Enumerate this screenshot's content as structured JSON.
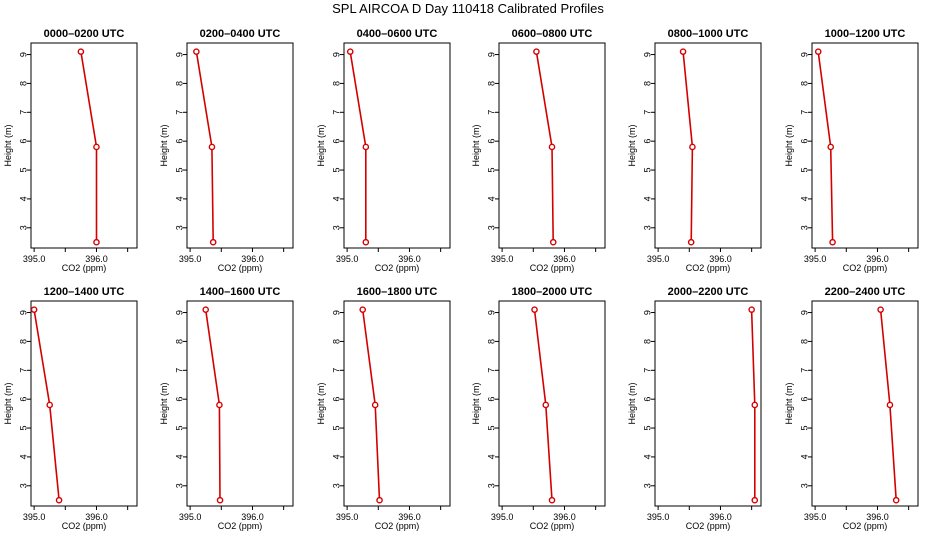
{
  "figure_title": "SPL AIRCOA D  Day 110418  Calibrated Profiles",
  "series_color": "#d40000",
  "chart_data": [
    {
      "type": "line",
      "title": "0000–0200 UTC",
      "xlabel": "CO2 (ppm)",
      "ylabel": "Height (m)",
      "xlim": [
        394.95,
        396.65
      ],
      "ylim": [
        2.3,
        9.4
      ],
      "xticks": [
        395.0,
        396.0
      ],
      "xtick_labels": [
        "395.0",
        "396.0"
      ],
      "yticks": [
        3,
        4,
        5,
        6,
        7,
        8,
        9
      ],
      "x": [
        395.75,
        396.0,
        396.0
      ],
      "y": [
        9.1,
        5.8,
        2.5
      ]
    },
    {
      "type": "line",
      "title": "0200–0400 UTC",
      "xlabel": "CO2 (ppm)",
      "ylabel": "Height (m)",
      "xlim": [
        394.95,
        396.65
      ],
      "ylim": [
        2.3,
        9.4
      ],
      "xticks": [
        395.0,
        396.0
      ],
      "xtick_labels": [
        "395.0",
        "396.0"
      ],
      "yticks": [
        3,
        4,
        5,
        6,
        7,
        8,
        9
      ],
      "x": [
        395.1,
        395.35,
        395.37
      ],
      "y": [
        9.1,
        5.8,
        2.5
      ]
    },
    {
      "type": "line",
      "title": "0400–0600 UTC",
      "xlabel": "CO2 (ppm)",
      "ylabel": "Height (m)",
      "xlim": [
        394.95,
        396.65
      ],
      "ylim": [
        2.3,
        9.4
      ],
      "xticks": [
        395.0,
        396.0
      ],
      "xtick_labels": [
        "395.0",
        "396.0"
      ],
      "yticks": [
        3,
        4,
        5,
        6,
        7,
        8,
        9
      ],
      "x": [
        395.05,
        395.3,
        395.3
      ],
      "y": [
        9.1,
        5.8,
        2.5
      ]
    },
    {
      "type": "line",
      "title": "0600–0800 UTC",
      "xlabel": "CO2 (ppm)",
      "ylabel": "Height (m)",
      "xlim": [
        394.95,
        396.65
      ],
      "ylim": [
        2.3,
        9.4
      ],
      "xticks": [
        395.0,
        396.0
      ],
      "xtick_labels": [
        "395.0",
        "396.0"
      ],
      "yticks": [
        3,
        4,
        5,
        6,
        7,
        8,
        9
      ],
      "x": [
        395.55,
        395.8,
        395.82
      ],
      "y": [
        9.1,
        5.8,
        2.5
      ]
    },
    {
      "type": "line",
      "title": "0800–1000 UTC",
      "xlabel": "CO2 (ppm)",
      "ylabel": "Height (m)",
      "xlim": [
        394.95,
        396.65
      ],
      "ylim": [
        2.3,
        9.4
      ],
      "xticks": [
        395.0,
        396.0
      ],
      "xtick_labels": [
        "395.0",
        "396.0"
      ],
      "yticks": [
        3,
        4,
        5,
        6,
        7,
        8,
        9
      ],
      "x": [
        395.4,
        395.55,
        395.53
      ],
      "y": [
        9.1,
        5.8,
        2.5
      ]
    },
    {
      "type": "line",
      "title": "1000–1200 UTC",
      "xlabel": "CO2 (ppm)",
      "ylabel": "Height (m)",
      "xlim": [
        394.95,
        396.65
      ],
      "ylim": [
        2.3,
        9.4
      ],
      "xticks": [
        395.0,
        396.0
      ],
      "xtick_labels": [
        "395.0",
        "396.0"
      ],
      "yticks": [
        3,
        4,
        5,
        6,
        7,
        8,
        9
      ],
      "x": [
        395.05,
        395.25,
        395.28
      ],
      "y": [
        9.1,
        5.8,
        2.5
      ]
    },
    {
      "type": "line",
      "title": "1200–1400 UTC",
      "xlabel": "CO2 (ppm)",
      "ylabel": "Height (m)",
      "xlim": [
        394.95,
        396.65
      ],
      "ylim": [
        2.3,
        9.4
      ],
      "xticks": [
        395.0,
        396.0
      ],
      "xtick_labels": [
        "395.0",
        "396.0"
      ],
      "yticks": [
        3,
        4,
        5,
        6,
        7,
        8,
        9
      ],
      "x": [
        395.0,
        395.25,
        395.4
      ],
      "y": [
        9.1,
        5.8,
        2.5
      ]
    },
    {
      "type": "line",
      "title": "1400–1600 UTC",
      "xlabel": "CO2 (ppm)",
      "ylabel": "Height (m)",
      "xlim": [
        394.95,
        396.65
      ],
      "ylim": [
        2.3,
        9.4
      ],
      "xticks": [
        395.0,
        396.0
      ],
      "xtick_labels": [
        "395.0",
        "396.0"
      ],
      "yticks": [
        3,
        4,
        5,
        6,
        7,
        8,
        9
      ],
      "x": [
        395.25,
        395.47,
        395.48
      ],
      "y": [
        9.1,
        5.8,
        2.5
      ]
    },
    {
      "type": "line",
      "title": "1600–1800 UTC",
      "xlabel": "CO2 (ppm)",
      "ylabel": "Height (m)",
      "xlim": [
        394.95,
        396.65
      ],
      "ylim": [
        2.3,
        9.4
      ],
      "xticks": [
        395.0,
        396.0
      ],
      "xtick_labels": [
        "395.0",
        "396.0"
      ],
      "yticks": [
        3,
        4,
        5,
        6,
        7,
        8,
        9
      ],
      "x": [
        395.25,
        395.45,
        395.52
      ],
      "y": [
        9.1,
        5.8,
        2.5
      ]
    },
    {
      "type": "line",
      "title": "1800–2000 UTC",
      "xlabel": "CO2 (ppm)",
      "ylabel": "Height (m)",
      "xlim": [
        394.95,
        396.65
      ],
      "ylim": [
        2.3,
        9.4
      ],
      "xticks": [
        395.0,
        396.0
      ],
      "xtick_labels": [
        "395.0",
        "396.0"
      ],
      "yticks": [
        3,
        4,
        5,
        6,
        7,
        8,
        9
      ],
      "x": [
        395.52,
        395.7,
        395.8
      ],
      "y": [
        9.1,
        5.8,
        2.5
      ]
    },
    {
      "type": "line",
      "title": "2000–2200 UTC",
      "xlabel": "CO2 (ppm)",
      "ylabel": "Height (m)",
      "xlim": [
        394.95,
        396.65
      ],
      "ylim": [
        2.3,
        9.4
      ],
      "xticks": [
        395.0,
        396.0
      ],
      "xtick_labels": [
        "395.0",
        "396.0"
      ],
      "yticks": [
        3,
        4,
        5,
        6,
        7,
        8,
        9
      ],
      "x": [
        396.5,
        396.55,
        396.55
      ],
      "y": [
        9.1,
        5.8,
        2.5
      ]
    },
    {
      "type": "line",
      "title": "2200–2400 UTC",
      "xlabel": "CO2 (ppm)",
      "ylabel": "Height (m)",
      "xlim": [
        394.95,
        396.65
      ],
      "ylim": [
        2.3,
        9.4
      ],
      "xticks": [
        395.0,
        396.0
      ],
      "xtick_labels": [
        "395.0",
        "396.0"
      ],
      "yticks": [
        3,
        4,
        5,
        6,
        7,
        8,
        9
      ],
      "x": [
        396.05,
        396.2,
        396.3
      ],
      "y": [
        9.1,
        5.8,
        2.5
      ]
    }
  ]
}
